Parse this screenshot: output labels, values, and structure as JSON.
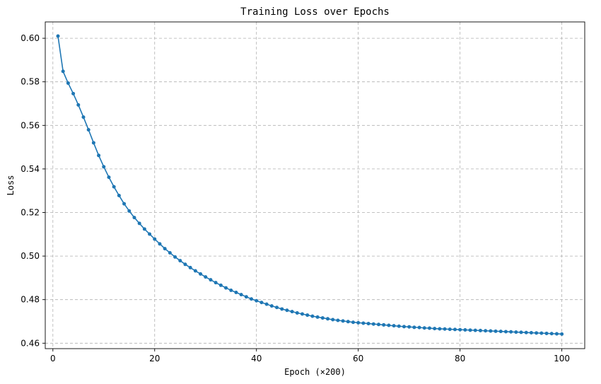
{
  "chart_data": {
    "type": "line",
    "title": "Training Loss over Epochs",
    "xlabel": "Epoch (×200)",
    "ylabel": "Loss",
    "xlim": [
      -1.5,
      104.5
    ],
    "ylim": [
      0.4575,
      0.6075
    ],
    "xticks": [
      0,
      20,
      40,
      60,
      80,
      100
    ],
    "yticks": [
      0.46,
      0.48,
      0.5,
      0.52,
      0.54,
      0.56,
      0.58,
      0.6
    ],
    "grid": true,
    "color": "#1f77b4",
    "series": [
      {
        "x": [
          1,
          2,
          3,
          4,
          5,
          6,
          7,
          8,
          9,
          10,
          11,
          12,
          13,
          14,
          15,
          16,
          17,
          18,
          19,
          20,
          21,
          22,
          23,
          24,
          25,
          26,
          27,
          28,
          29,
          30,
          31,
          32,
          33,
          34,
          35,
          36,
          37,
          38,
          39,
          40,
          41,
          42,
          43,
          44,
          45,
          46,
          47,
          48,
          49,
          50,
          51,
          52,
          53,
          54,
          55,
          56,
          57,
          58,
          59,
          60,
          61,
          62,
          63,
          64,
          65,
          66,
          67,
          68,
          69,
          70,
          71,
          72,
          73,
          74,
          75,
          76,
          77,
          78,
          79,
          80,
          81,
          82,
          83,
          84,
          85,
          86,
          87,
          88,
          89,
          90,
          91,
          92,
          93,
          94,
          95,
          96,
          97,
          98,
          99,
          100
        ],
        "y": [
          0.601,
          0.5848,
          0.5794,
          0.5746,
          0.5694,
          0.5638,
          0.558,
          0.552,
          0.5462,
          0.541,
          0.5362,
          0.5318,
          0.5278,
          0.524,
          0.5207,
          0.5177,
          0.515,
          0.5124,
          0.5101,
          0.5078,
          0.5056,
          0.5034,
          0.5015,
          0.4996,
          0.4979,
          0.4962,
          0.4947,
          0.4932,
          0.4918,
          0.4904,
          0.4891,
          0.4878,
          0.4866,
          0.4854,
          0.4843,
          0.4833,
          0.4823,
          0.4813,
          0.4803,
          0.4795,
          0.4787,
          0.4779,
          0.4771,
          0.4764,
          0.4757,
          0.4751,
          0.4745,
          0.4739,
          0.4734,
          0.4729,
          0.4724,
          0.472,
          0.4716,
          0.4712,
          0.4708,
          0.4705,
          0.4702,
          0.4699,
          0.4696,
          0.4694,
          0.4692,
          0.469,
          0.4688,
          0.4686,
          0.4684,
          0.4682,
          0.468,
          0.4678,
          0.4676,
          0.4675,
          0.4673,
          0.4672,
          0.467,
          0.4669,
          0.4667,
          0.4666,
          0.4665,
          0.4664,
          0.4663,
          0.4662,
          0.4661,
          0.466,
          0.4659,
          0.4658,
          0.4657,
          0.4656,
          0.4655,
          0.4654,
          0.4653,
          0.4652,
          0.4651,
          0.465,
          0.4649,
          0.4648,
          0.4647,
          0.4646,
          0.4645,
          0.4644,
          0.4643,
          0.4642
        ]
      }
    ]
  }
}
